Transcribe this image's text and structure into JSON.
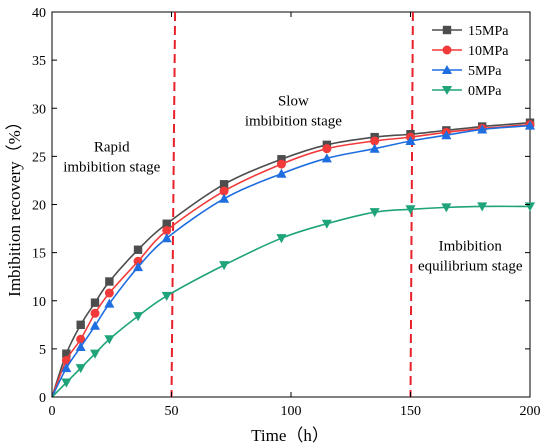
{
  "chart_data": {
    "type": "line",
    "xlabel": "Time（h）",
    "ylabel": "Imbibition recovery（%）",
    "xlim": [
      0,
      200
    ],
    "ylim": [
      0,
      40
    ],
    "x_ticks": [
      "0",
      "50",
      "100",
      "150",
      "200"
    ],
    "y_ticks": [
      "0",
      "5",
      "10",
      "15",
      "20",
      "25",
      "30",
      "35",
      "40"
    ],
    "legend_position": "top-right",
    "grid": false,
    "series": [
      {
        "name": "15MPa",
        "color": "#4d4d4d",
        "marker": "square",
        "points": [
          [
            0,
            0
          ],
          [
            6,
            4.5
          ],
          [
            12,
            7.5
          ],
          [
            18,
            9.8
          ],
          [
            24,
            12.0
          ],
          [
            36,
            15.3
          ],
          [
            48,
            18.0
          ],
          [
            72,
            22.1
          ],
          [
            96,
            24.7
          ],
          [
            115,
            26.2
          ],
          [
            135,
            27.0
          ],
          [
            150,
            27.3
          ],
          [
            165,
            27.7
          ],
          [
            180,
            28.1
          ],
          [
            200,
            28.5
          ]
        ]
      },
      {
        "name": "10MPa",
        "color": "#f23a3a",
        "marker": "circle",
        "points": [
          [
            0,
            0
          ],
          [
            6,
            3.8
          ],
          [
            12,
            6.0
          ],
          [
            18,
            8.7
          ],
          [
            24,
            10.8
          ],
          [
            36,
            14.1
          ],
          [
            48,
            17.3
          ],
          [
            72,
            21.4
          ],
          [
            96,
            24.2
          ],
          [
            115,
            25.8
          ],
          [
            135,
            26.6
          ],
          [
            150,
            27.0
          ],
          [
            165,
            27.5
          ],
          [
            180,
            27.9
          ],
          [
            200,
            28.3
          ]
        ]
      },
      {
        "name": "5MPa",
        "color": "#1f6ee0",
        "marker": "triangle-up",
        "points": [
          [
            0,
            0
          ],
          [
            6,
            3.0
          ],
          [
            12,
            5.2
          ],
          [
            18,
            7.4
          ],
          [
            24,
            9.7
          ],
          [
            36,
            13.5
          ],
          [
            48,
            16.5
          ],
          [
            72,
            20.6
          ],
          [
            96,
            23.2
          ],
          [
            115,
            24.8
          ],
          [
            135,
            25.8
          ],
          [
            150,
            26.6
          ],
          [
            165,
            27.2
          ],
          [
            180,
            27.8
          ],
          [
            200,
            28.2
          ]
        ]
      },
      {
        "name": "0MPa",
        "color": "#1fa37a",
        "marker": "triangle-down",
        "points": [
          [
            0,
            0
          ],
          [
            6,
            1.5
          ],
          [
            12,
            3.0
          ],
          [
            18,
            4.5
          ],
          [
            24,
            6.0
          ],
          [
            36,
            8.4
          ],
          [
            48,
            10.5
          ],
          [
            72,
            13.7
          ],
          [
            96,
            16.5
          ],
          [
            115,
            18.0
          ],
          [
            135,
            19.2
          ],
          [
            150,
            19.5
          ],
          [
            165,
            19.7
          ],
          [
            180,
            19.8
          ],
          [
            200,
            19.8
          ]
        ]
      }
    ],
    "dividers": [
      {
        "x_top": 51.5,
        "x_bottom": 50,
        "color": "#e8202a",
        "style": "dashed"
      },
      {
        "x_top": 151,
        "x_bottom": 150,
        "color": "#e8202a",
        "style": "dashed"
      }
    ],
    "annotations": [
      {
        "lines": [
          "Rapid",
          "imbibition stage"
        ],
        "x": 25,
        "y": 25.5
      },
      {
        "lines": [
          "Slow",
          "imbibition stage"
        ],
        "x": 101,
        "y": 30.3
      },
      {
        "lines": [
          "Imbibition",
          "equilibrium stage"
        ],
        "x": 175,
        "y": 15.2
      }
    ]
  }
}
